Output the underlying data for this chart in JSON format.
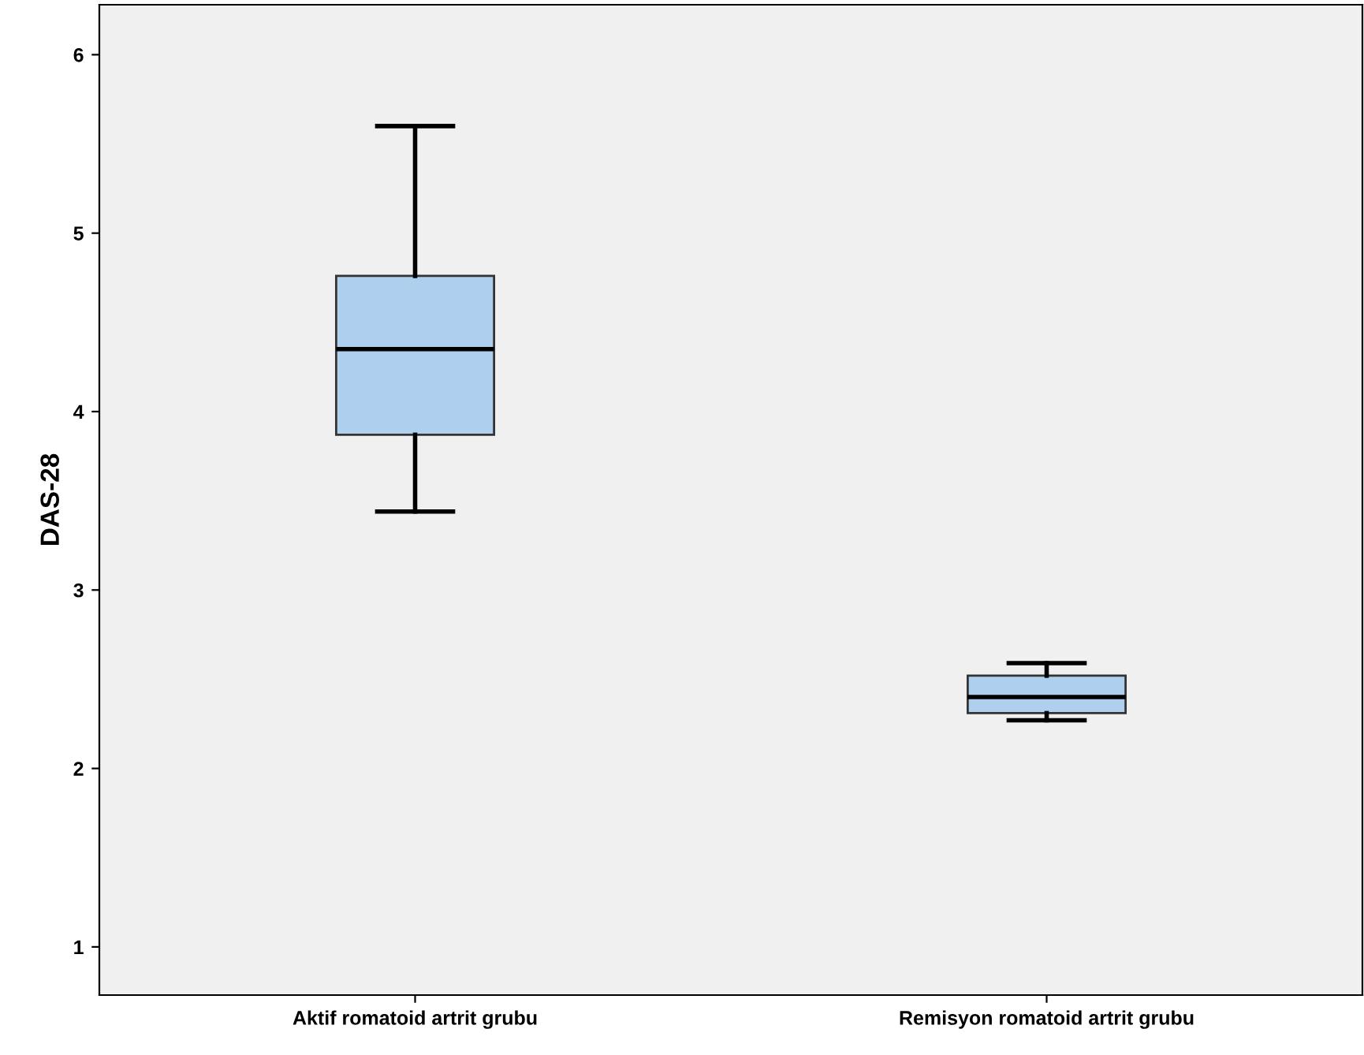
{
  "chart_data": {
    "type": "box",
    "ylabel": "DAS-28",
    "categories": [
      "Aktif romatoid artrit grubu",
      "Remisyon romatoid artrit grubu"
    ],
    "boxes": [
      {
        "low": 3.44,
        "q1": 3.87,
        "median": 4.35,
        "q3": 4.76,
        "high": 5.6
      },
      {
        "low": 2.27,
        "q1": 2.31,
        "median": 2.4,
        "q3": 2.52,
        "high": 2.59
      }
    ],
    "color": "#aed0ee",
    "ylim": [
      0.73,
      6.28
    ],
    "yticks": [
      1,
      2,
      3,
      4,
      5,
      6
    ],
    "grid": false,
    "legend": false
  }
}
